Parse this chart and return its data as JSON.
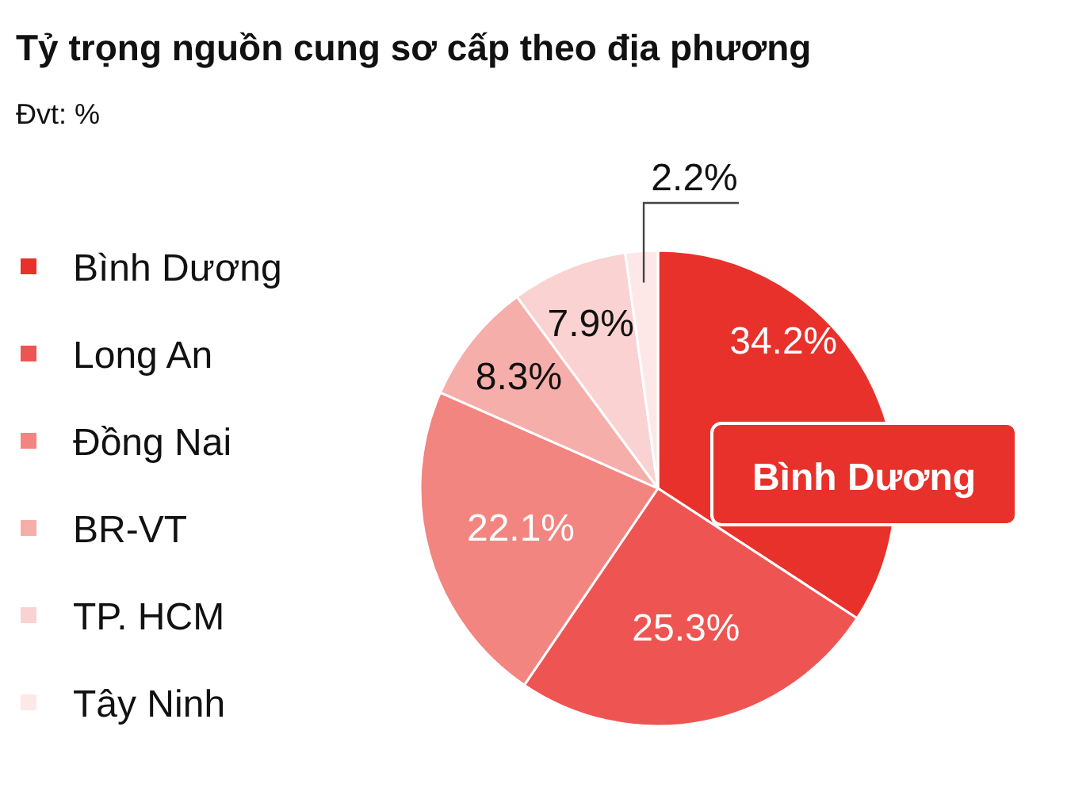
{
  "chart_data": {
    "type": "pie",
    "title": "Tỷ trọng nguồn cung sơ cấp theo địa phương",
    "subtitle": "Đvt: %",
    "categories": [
      "Bình Dương",
      "Long An",
      "Đồng Nai",
      "BR-VT",
      "TP. HCM",
      "Tây Ninh"
    ],
    "values": [
      34.2,
      25.3,
      22.1,
      8.3,
      7.9,
      2.2
    ],
    "colors": [
      "#e8312b",
      "#ee5552",
      "#f28580",
      "#f6aeab",
      "#fad2d1",
      "#fde8e7"
    ],
    "value_labels": [
      "34.2%",
      "25.3%",
      "22.1%",
      "8.3%",
      "7.9%",
      "2.2%"
    ],
    "legend": "left",
    "annotations": [
      "Bình Dương"
    ]
  }
}
